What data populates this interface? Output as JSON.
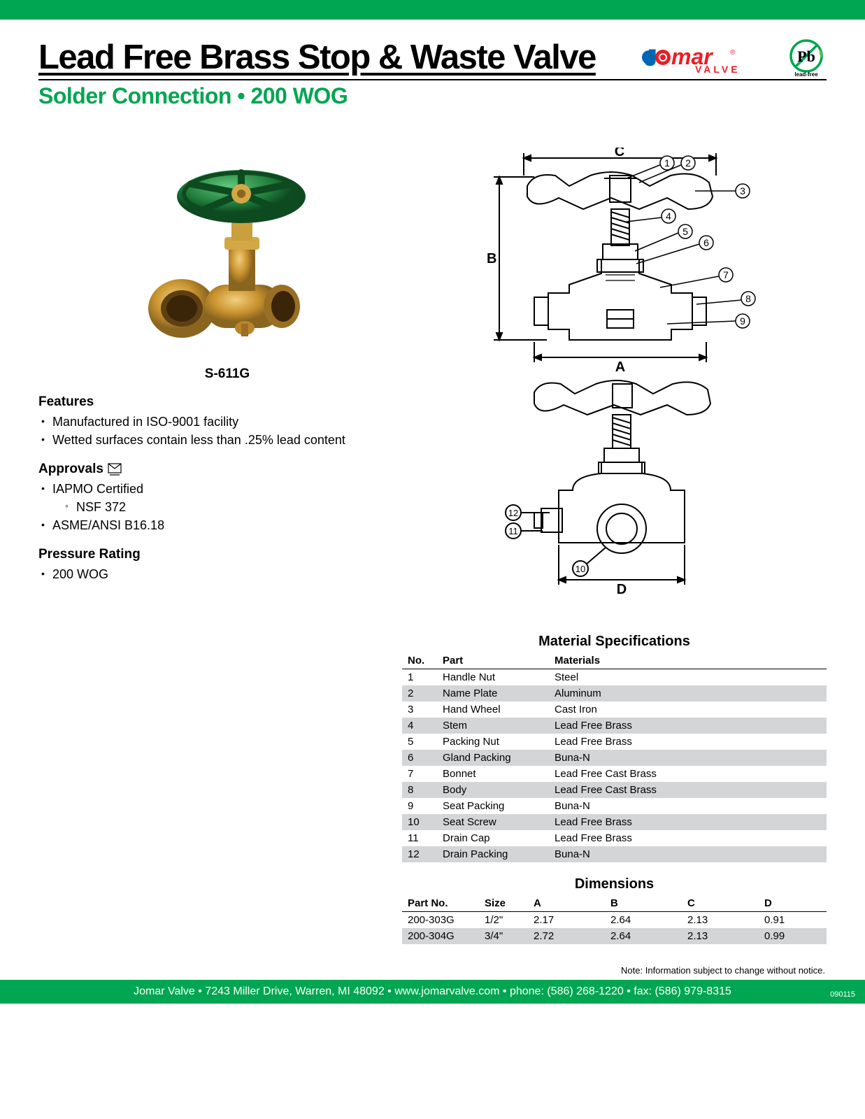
{
  "header": {
    "title": "Lead Free Brass Stop & Waste Valve",
    "subtitle": "Solder Connection • 200 WOG",
    "brand_text_jo": "J",
    "brand_text_mar": "mar",
    "brand_sub": "VALVE",
    "pb_label": "Pb",
    "pb_sub": "lead-free",
    "brand_colors": {
      "j_blue": "#0066b3",
      "o_red": "#ed1c24",
      "mar_red": "#ed1c24",
      "valve_red": "#ed1c24",
      "pb_green": "#00a651"
    }
  },
  "product": {
    "model": "S-611G",
    "image_colors": {
      "handle": "#1f7a3a",
      "handle_hi": "#3fae5b",
      "body": "#c9932f",
      "body_hi": "#e6b85e",
      "body_dark": "#8a6520",
      "port": "#b07822",
      "port_inner": "#5e3f12"
    }
  },
  "features": {
    "heading": "Features",
    "items": [
      "Manufactured in ISO-9001 facility",
      "Wetted surfaces contain less than .25% lead content"
    ]
  },
  "approvals": {
    "heading": "Approvals",
    "items": [
      {
        "label": "IAPMO Certified",
        "sub": [
          "NSF 372"
        ]
      },
      {
        "label": "ASME/ANSI B16.18"
      }
    ]
  },
  "pressure": {
    "heading": "Pressure Rating",
    "items": [
      "200 WOG"
    ]
  },
  "diagram": {
    "dim_labels": {
      "A": "A",
      "B": "B",
      "C": "C",
      "D": "D"
    },
    "callouts": [
      1,
      2,
      3,
      4,
      5,
      6,
      7,
      8,
      9,
      10,
      11,
      12
    ],
    "stroke": "#000000",
    "fill": "#ffffff"
  },
  "materials": {
    "title": "Material Specifications",
    "columns": [
      "No.",
      "Part",
      "Materials"
    ],
    "rows": [
      [
        "1",
        "Handle Nut",
        "Steel"
      ],
      [
        "2",
        "Name Plate",
        "Aluminum"
      ],
      [
        "3",
        "Hand Wheel",
        "Cast Iron"
      ],
      [
        "4",
        "Stem",
        "Lead Free Brass"
      ],
      [
        "5",
        "Packing Nut",
        "Lead Free Brass"
      ],
      [
        "6",
        "Gland Packing",
        "Buna-N"
      ],
      [
        "7",
        "Bonnet",
        "Lead Free Cast Brass"
      ],
      [
        "8",
        "Body",
        "Lead Free Cast Brass"
      ],
      [
        "9",
        "Seat Packing",
        "Buna-N"
      ],
      [
        "10",
        "Seat Screw",
        "Lead Free Brass"
      ],
      [
        "11",
        "Drain Cap",
        "Lead Free Brass"
      ],
      [
        "12",
        "Drain Packing",
        "Buna-N"
      ]
    ],
    "col_widths": [
      "50px",
      "160px",
      "auto"
    ],
    "alt_row_color": "#d4d5d6"
  },
  "dimensions": {
    "title": "Dimensions",
    "columns": [
      "Part No.",
      "Size",
      "A",
      "B",
      "C",
      "D"
    ],
    "rows": [
      [
        "200-303G",
        "1/2\"",
        "2.17",
        "2.64",
        "2.13",
        "0.91"
      ],
      [
        "200-304G",
        "3/4\"",
        "2.72",
        "2.64",
        "2.13",
        "0.99"
      ]
    ],
    "col_widths": [
      "110px",
      "70px",
      "110px",
      "110px",
      "110px",
      "auto"
    ]
  },
  "footer": {
    "note": "Note: Information subject to change without notice.",
    "text": "Jomar Valve  •  7243 Miller Drive, Warren, MI 48092  •  www.jomarvalve.com  •  phone: (586) 268-1220  •  fax: (586) 979-8315",
    "docnum": "090115",
    "bg": "#00a651"
  }
}
